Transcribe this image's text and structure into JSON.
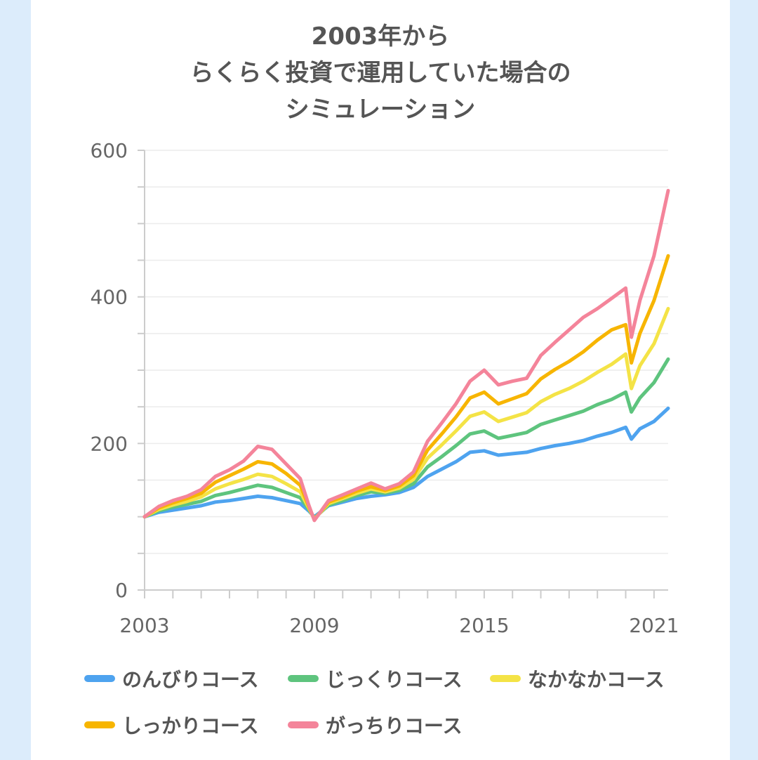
{
  "chart_data": {
    "type": "line",
    "title_lines": [
      "2003年から",
      "らくらく投資で運用していた場合の",
      "シミュレーション"
    ],
    "x_ticks": [
      "2003",
      "2009",
      "2015",
      "2021"
    ],
    "y_ticks": [
      "0",
      "200",
      "400",
      "600"
    ],
    "xlim": [
      2003,
      2021.5
    ],
    "ylim": [
      0,
      600
    ],
    "grid": true,
    "legend_position": "bottom",
    "x": [
      2003.0,
      2003.5,
      2004.0,
      2004.5,
      2005.0,
      2005.5,
      2006.0,
      2006.5,
      2007.0,
      2007.5,
      2008.0,
      2008.5,
      2008.8,
      2009.0,
      2009.5,
      2010.0,
      2010.5,
      2011.0,
      2011.5,
      2012.0,
      2012.5,
      2013.0,
      2013.5,
      2014.0,
      2014.5,
      2015.0,
      2015.5,
      2016.0,
      2016.5,
      2017.0,
      2017.5,
      2018.0,
      2018.5,
      2019.0,
      2019.5,
      2020.0,
      2020.2,
      2020.5,
      2021.0,
      2021.5
    ],
    "series": [
      {
        "name": "のんびりコース",
        "color": "#4ea3ef",
        "values": [
          100,
          106,
          109,
          112,
          115,
          120,
          122,
          125,
          128,
          126,
          122,
          118,
          108,
          100,
          115,
          120,
          125,
          128,
          130,
          133,
          140,
          155,
          165,
          175,
          188,
          190,
          184,
          186,
          188,
          193,
          197,
          200,
          204,
          210,
          215,
          222,
          206,
          220,
          230,
          248
        ]
      },
      {
        "name": "じっくりコース",
        "color": "#5ec47e",
        "values": [
          100,
          108,
          113,
          117,
          121,
          129,
          133,
          138,
          143,
          140,
          133,
          126,
          110,
          98,
          116,
          122,
          129,
          134,
          132,
          136,
          145,
          168,
          182,
          197,
          213,
          217,
          207,
          211,
          215,
          226,
          232,
          238,
          244,
          253,
          260,
          270,
          243,
          262,
          283,
          315
        ]
      },
      {
        "name": "なかなかコース",
        "color": "#f4e346",
        "values": [
          100,
          110,
          116,
          121,
          127,
          138,
          145,
          151,
          158,
          155,
          145,
          134,
          112,
          97,
          118,
          125,
          132,
          138,
          134,
          139,
          151,
          180,
          198,
          217,
          237,
          243,
          230,
          236,
          242,
          257,
          267,
          275,
          285,
          297,
          308,
          322,
          275,
          306,
          336,
          384
        ]
      },
      {
        "name": "しっかりコース",
        "color": "#f7b500",
        "values": [
          100,
          112,
          119,
          125,
          132,
          147,
          156,
          165,
          175,
          172,
          159,
          143,
          114,
          96,
          120,
          127,
          135,
          141,
          136,
          142,
          156,
          191,
          213,
          236,
          262,
          270,
          254,
          261,
          268,
          288,
          301,
          312,
          325,
          341,
          355,
          362,
          310,
          350,
          395,
          456
        ]
      },
      {
        "name": "がっちりコース",
        "color": "#f4849a",
        "values": [
          100,
          114,
          122,
          128,
          137,
          155,
          164,
          176,
          196,
          192,
          172,
          152,
          116,
          95,
          122,
          130,
          138,
          146,
          138,
          145,
          161,
          203,
          228,
          254,
          285,
          300,
          280,
          285,
          289,
          320,
          338,
          355,
          372,
          384,
          398,
          412,
          345,
          395,
          456,
          545
        ]
      }
    ]
  },
  "legend_items": [
    "のんびりコース",
    "じっくりコース",
    "なかなかコース",
    "しっかりコース",
    "がっちりコース"
  ]
}
